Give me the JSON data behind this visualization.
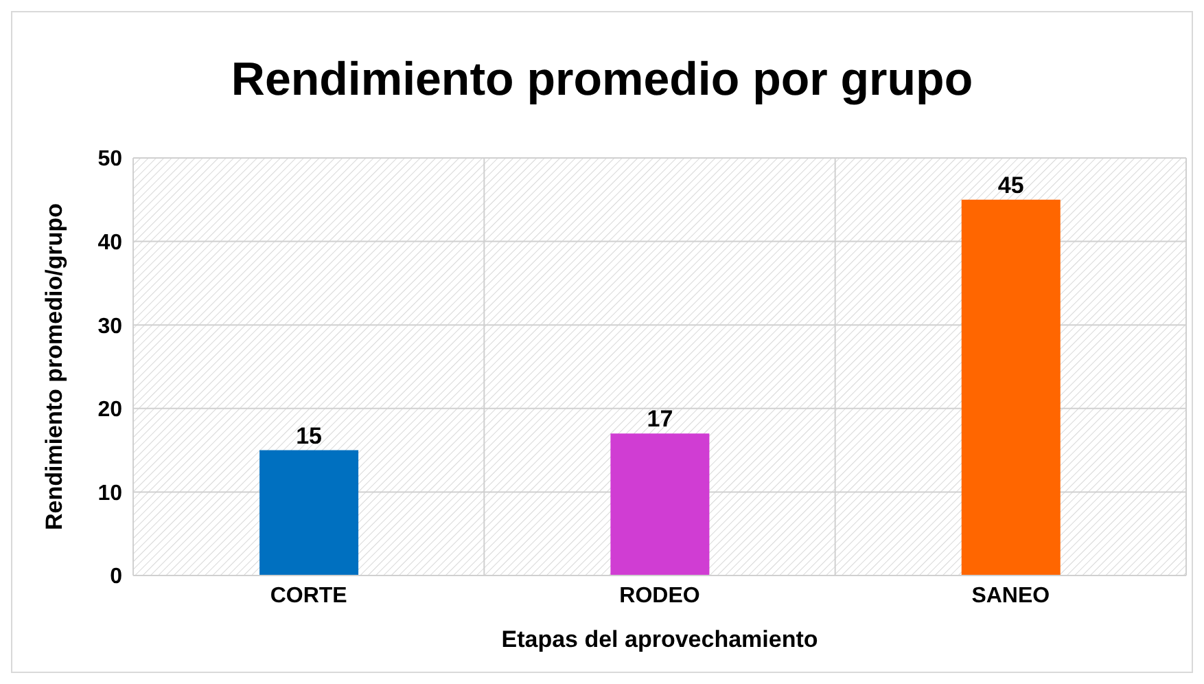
{
  "chart_data": {
    "type": "bar",
    "title": "Rendimiento promedio por grupo",
    "xlabel": "Etapas del aprovechamiento",
    "ylabel": "Rendimiento promedio/grupo",
    "categories": [
      "CORTE",
      "RODEO",
      "SANEO"
    ],
    "values": [
      15,
      17,
      45
    ],
    "colors": [
      "#0070c0",
      "#d03dd3",
      "#ff6600"
    ],
    "ylim": [
      0,
      50
    ],
    "yticks": [
      0,
      10,
      20,
      30,
      40,
      50
    ],
    "grid": true,
    "data_labels": true
  }
}
